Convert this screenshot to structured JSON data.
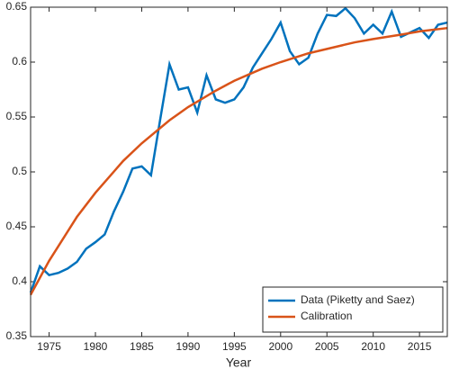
{
  "chart_data": {
    "type": "line",
    "xlabel": "Year",
    "xlim": [
      1973,
      2018
    ],
    "ylim": [
      0.35,
      0.65
    ],
    "xticks": [
      1975,
      1980,
      1985,
      1990,
      1995,
      2000,
      2005,
      2010,
      2015
    ],
    "yticks": [
      0.35,
      0.4,
      0.45,
      0.5,
      0.55,
      0.6,
      0.65
    ],
    "legend": "lower right",
    "series": [
      {
        "name": "Data (Piketty and Saez)",
        "color": "#0072bd",
        "x": [
          1973,
          1974,
          1975,
          1976,
          1977,
          1978,
          1979,
          1980,
          1981,
          1982,
          1983,
          1984,
          1985,
          1986,
          1987,
          1988,
          1989,
          1990,
          1991,
          1992,
          1993,
          1994,
          1995,
          1996,
          1997,
          1998,
          1999,
          2000,
          2001,
          2002,
          2003,
          2004,
          2005,
          2006,
          2007,
          2008,
          2009,
          2010,
          2011,
          2012,
          2013,
          2014,
          2015,
          2016,
          2017,
          2018
        ],
        "values": [
          0.39,
          0.414,
          0.406,
          0.408,
          0.412,
          0.418,
          0.43,
          0.436,
          0.443,
          0.464,
          0.482,
          0.503,
          0.505,
          0.497,
          0.548,
          0.598,
          0.575,
          0.577,
          0.554,
          0.588,
          0.566,
          0.563,
          0.566,
          0.577,
          0.595,
          0.608,
          0.621,
          0.636,
          0.61,
          0.598,
          0.604,
          0.626,
          0.643,
          0.642,
          0.649,
          0.64,
          0.626,
          0.634,
          0.626,
          0.646,
          0.623,
          0.627,
          0.631,
          0.622,
          0.634,
          0.636
        ]
      },
      {
        "name": "Calibration",
        "color": "#d95319",
        "x": [
          1973,
          1975,
          1978,
          1980,
          1983,
          1985,
          1988,
          1990,
          1993,
          1995,
          1998,
          2000,
          2003,
          2005,
          2008,
          2010,
          2013,
          2015,
          2018
        ],
        "values": [
          0.388,
          0.419,
          0.459,
          0.481,
          0.51,
          0.526,
          0.547,
          0.559,
          0.574,
          0.583,
          0.594,
          0.6,
          0.608,
          0.612,
          0.618,
          0.621,
          0.625,
          0.628,
          0.631
        ]
      }
    ]
  }
}
